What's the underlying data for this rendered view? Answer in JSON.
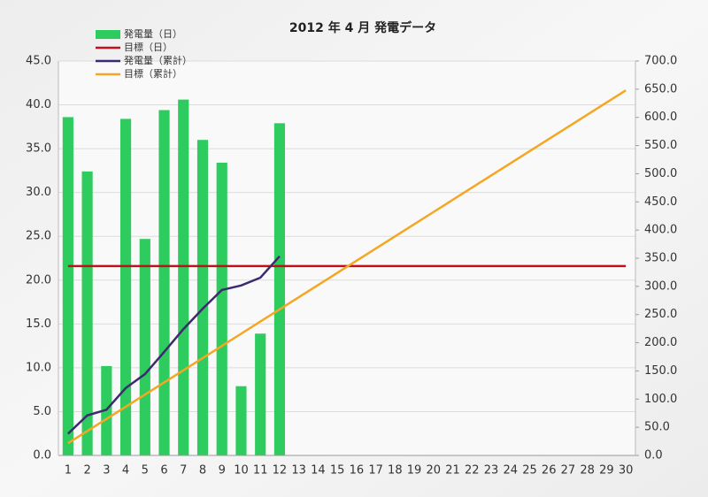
{
  "chart_data": {
    "type": "bar",
    "title": "2012 年 4 月 発電データ",
    "categories": [
      "1",
      "2",
      "3",
      "4",
      "5",
      "6",
      "7",
      "8",
      "9",
      "10",
      "11",
      "12",
      "13",
      "14",
      "15",
      "16",
      "17",
      "18",
      "19",
      "20",
      "21",
      "22",
      "23",
      "24",
      "25",
      "26",
      "27",
      "28",
      "29",
      "30"
    ],
    "series": [
      {
        "name": "発電量（日）",
        "type": "bar",
        "color": "#2ecc5e",
        "values": [
          38.6,
          32.4,
          10.2,
          38.4,
          24.7,
          39.4,
          40.6,
          36.0,
          33.4,
          7.9,
          13.9,
          37.9,
          null,
          null,
          null,
          null,
          null,
          null,
          null,
          null,
          null,
          null,
          null,
          null,
          null,
          null,
          null,
          null,
          null,
          null
        ]
      },
      {
        "name": "目標（日）",
        "type": "line",
        "color": "#c0101a",
        "values": [
          21.6,
          21.6,
          21.6,
          21.6,
          21.6,
          21.6,
          21.6,
          21.6,
          21.6,
          21.6,
          21.6,
          21.6,
          21.6,
          21.6,
          21.6,
          21.6,
          21.6,
          21.6,
          21.6,
          21.6,
          21.6,
          21.6,
          21.6,
          21.6,
          21.6,
          21.6,
          21.6,
          21.6,
          21.6,
          21.6
        ]
      },
      {
        "name": "発電量（累計）",
        "type": "line",
        "axis": "y2",
        "color": "#3d2a6e",
        "values": [
          38.6,
          71.0,
          81.2,
          119.6,
          144.3,
          183.7,
          224.3,
          260.3,
          293.7,
          301.6,
          315.5,
          353.4,
          null,
          null,
          null,
          null,
          null,
          null,
          null,
          null,
          null,
          null,
          null,
          null,
          null,
          null,
          null,
          null,
          null,
          null
        ]
      },
      {
        "name": "目標（累計）",
        "type": "line",
        "axis": "y2",
        "color": "#f5a623",
        "values": [
          21.6,
          43.2,
          64.8,
          86.4,
          108,
          129.6,
          151.2,
          172.8,
          194.4,
          216,
          237.6,
          259.2,
          280.8,
          302.4,
          324,
          345.6,
          367.2,
          388.8,
          410.4,
          432,
          453.6,
          475.2,
          496.8,
          518.4,
          540,
          561.6,
          583.2,
          604.8,
          626.4,
          648
        ]
      }
    ],
    "ylim": [
      0,
      45
    ],
    "yticks": [
      {
        "value": 0,
        "label": "0.0"
      },
      {
        "value": 5,
        "label": "5.0"
      },
      {
        "value": 10,
        "label": "10.0"
      },
      {
        "value": 15,
        "label": "15.0"
      },
      {
        "value": 20,
        "label": "20.0"
      },
      {
        "value": 25,
        "label": "25.0"
      },
      {
        "value": 30,
        "label": "30.0"
      },
      {
        "value": 35,
        "label": "35.0"
      },
      {
        "value": 40,
        "label": "40.0"
      },
      {
        "value": 45,
        "label": "45.0"
      }
    ],
    "y2lim": [
      0,
      700
    ],
    "y2ticks": [
      {
        "value": 0,
        "label": "0.0"
      },
      {
        "value": 50,
        "label": "50.0"
      },
      {
        "value": 100,
        "label": "100.0"
      },
      {
        "value": 150,
        "label": "150.0"
      },
      {
        "value": 200,
        "label": "200.0"
      },
      {
        "value": 250,
        "label": "250.0"
      },
      {
        "value": 300,
        "label": "300.0"
      },
      {
        "value": 350,
        "label": "350.0"
      },
      {
        "value": 400,
        "label": "400.0"
      },
      {
        "value": 450,
        "label": "450.0"
      },
      {
        "value": 500,
        "label": "500.0"
      },
      {
        "value": 550,
        "label": "550.0"
      },
      {
        "value": 600,
        "label": "600.0"
      },
      {
        "value": 650,
        "label": "650.0"
      },
      {
        "value": 700,
        "label": "700.0"
      }
    ],
    "grid": true,
    "legend": "top-left"
  }
}
